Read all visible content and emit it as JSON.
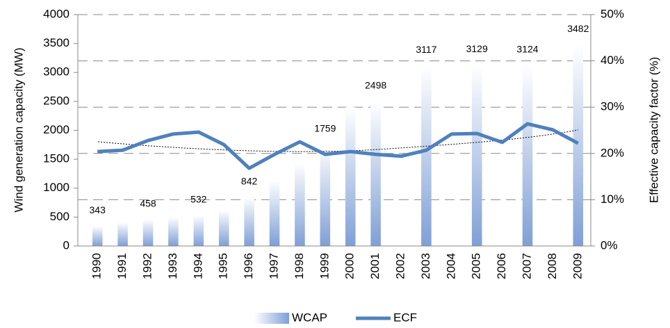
{
  "chart_data": {
    "type": "bar-line",
    "y_label": "Wind generation capacity (MW)",
    "y2_label": "Effective capacity factor (%)",
    "categories": [
      "1990",
      "1991",
      "1992",
      "1993",
      "1994",
      "1995",
      "1996",
      "1997",
      "1998",
      "1999",
      "2000",
      "2001",
      "2002",
      "2003",
      "2004",
      "2005",
      "2006",
      "2007",
      "2008",
      "2009"
    ],
    "series": [
      {
        "name": "WCAP",
        "type": "bar",
        "color": "#7f9fd6",
        "values": [
          343,
          410,
          458,
          495,
          532,
          620,
          842,
          1130,
          1440,
          1759,
          2400,
          2498,
          null,
          3117,
          null,
          3129,
          null,
          3124,
          null,
          3482
        ],
        "value_labels": [
          "343",
          null,
          "458",
          null,
          "532",
          null,
          "842",
          null,
          null,
          "1759",
          null,
          "2498",
          null,
          "3117",
          null,
          "3129",
          null,
          "3124",
          null,
          "3482"
        ]
      },
      {
        "name": "ECF",
        "type": "line",
        "axis": "y2",
        "color": "#4f81bd",
        "values": [
          20.4,
          20.7,
          22.8,
          24.2,
          24.6,
          21.9,
          16.8,
          19.8,
          22.5,
          19.8,
          20.4,
          19.8,
          19.4,
          20.7,
          24.2,
          24.3,
          22.4,
          26.4,
          25.1,
          22.2
        ]
      }
    ],
    "ylim": [
      0,
      4000
    ],
    "yticks": [
      0,
      500,
      1000,
      1500,
      2000,
      2500,
      3000,
      3500,
      4000
    ],
    "y2lim": [
      0,
      50
    ],
    "y2ticks": [
      {
        "value": 0,
        "label": "0%"
      },
      {
        "value": 10,
        "label": "10%"
      },
      {
        "value": 20,
        "label": "20%"
      },
      {
        "value": 30,
        "label": "30%"
      },
      {
        "value": 40,
        "label": "40%"
      },
      {
        "value": 50,
        "label": "50%"
      }
    ],
    "grid": true,
    "legend": "bottom"
  }
}
